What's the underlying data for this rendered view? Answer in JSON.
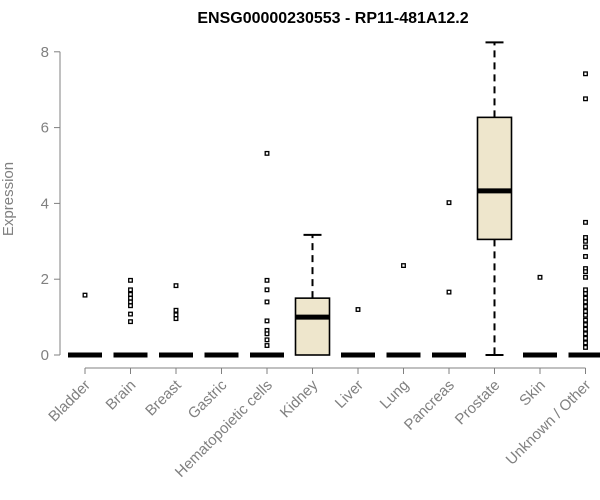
{
  "chart_data": {
    "type": "box",
    "title": "ENSG00000230553 - RP11-481A12.2",
    "xlabel": "",
    "ylabel": "Expression",
    "ylim": [
      0,
      8.3
    ],
    "yticks": [
      0,
      2,
      4,
      6,
      8
    ],
    "box_fill": "#EEE6CC",
    "categories": [
      "Bladder",
      "Brain",
      "Breast",
      "Gastric",
      "Hematopoietic cells",
      "Kidney",
      "Liver",
      "Lung",
      "Pancreas",
      "Prostate",
      "Skin",
      "Unknown / Other"
    ],
    "boxes": [
      {
        "min": 0,
        "q1": 0,
        "median": 0,
        "q3": 0,
        "max": 0,
        "outliers": [
          1.58
        ]
      },
      {
        "min": 0,
        "q1": 0,
        "median": 0,
        "q3": 0,
        "max": 0,
        "outliers": [
          1.97,
          1.72,
          1.6,
          1.5,
          1.4,
          1.3,
          1.08,
          0.88
        ]
      },
      {
        "min": 0,
        "q1": 0,
        "median": 0,
        "q3": 0,
        "max": 0,
        "outliers": [
          1.83,
          1.18,
          1.06,
          0.96
        ]
      },
      {
        "min": 0,
        "q1": 0,
        "median": 0,
        "q3": 0,
        "max": 0,
        "outliers": []
      },
      {
        "min": 0,
        "q1": 0,
        "median": 0,
        "q3": 0,
        "max": 0,
        "outliers": [
          5.32,
          1.97,
          1.72,
          1.4,
          0.9,
          0.65,
          0.56,
          0.4,
          0.25
        ]
      },
      {
        "min": 0,
        "q1": 0,
        "median": 1,
        "q3": 1.5,
        "max": 3.17,
        "outliers": []
      },
      {
        "min": 0,
        "q1": 0,
        "median": 0,
        "q3": 0,
        "max": 0,
        "outliers": [
          1.2
        ]
      },
      {
        "min": 0,
        "q1": 0,
        "median": 0,
        "q3": 0,
        "max": 0,
        "outliers": [
          2.36
        ]
      },
      {
        "min": 0,
        "q1": 0,
        "median": 0,
        "q3": 0,
        "max": 0,
        "outliers": [
          4.02,
          1.66
        ]
      },
      {
        "min": 0,
        "q1": 3.05,
        "median": 4.33,
        "q3": 6.27,
        "max": 8.25,
        "outliers": []
      },
      {
        "min": 0,
        "q1": 0,
        "median": 0,
        "q3": 0,
        "max": 0,
        "outliers": [
          2.05
        ]
      },
      {
        "min": 0,
        "q1": 0,
        "median": 0,
        "q3": 0,
        "max": 0,
        "outliers": [
          7.42,
          6.76,
          3.5,
          3.1,
          3.0,
          2.85,
          2.6,
          2.28,
          2.2,
          2.05,
          1.72,
          1.62,
          1.5,
          1.4,
          1.28,
          1.15,
          1.05,
          0.92,
          0.8,
          0.68,
          0.56,
          0.44,
          0.32,
          0.2
        ]
      }
    ]
  }
}
